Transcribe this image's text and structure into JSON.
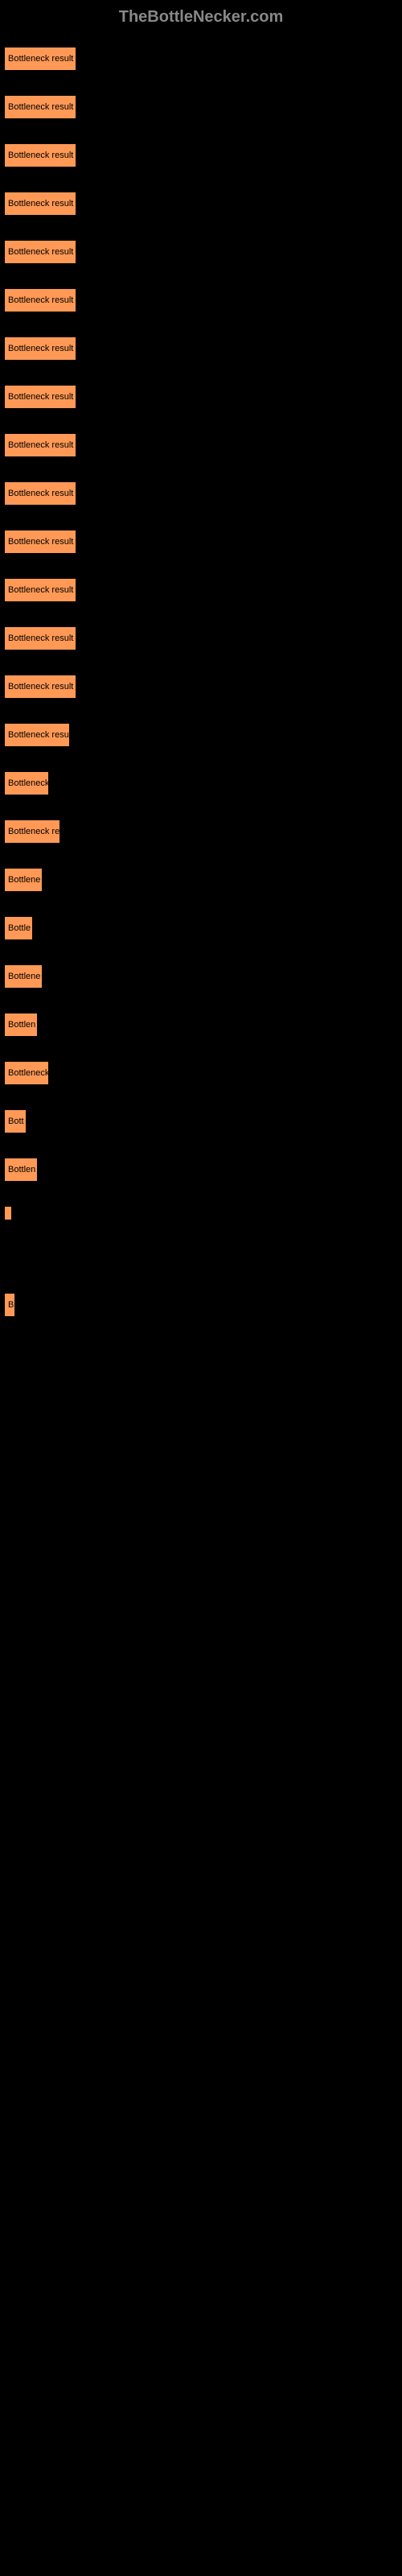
{
  "header": "TheBottleNecker.com",
  "bars": [
    {
      "label": "Bottleneck result",
      "width": 90
    },
    {
      "label": "Bottleneck result",
      "width": 90
    },
    {
      "label": "Bottleneck result",
      "width": 90
    },
    {
      "label": "Bottleneck result",
      "width": 90
    },
    {
      "label": "Bottleneck result",
      "width": 90
    },
    {
      "label": "Bottleneck result",
      "width": 90
    },
    {
      "label": "Bottleneck result",
      "width": 90
    },
    {
      "label": "Bottleneck result",
      "width": 90
    },
    {
      "label": "Bottleneck result",
      "width": 90
    },
    {
      "label": "Bottleneck result",
      "width": 90
    },
    {
      "label": "Bottleneck result",
      "width": 90
    },
    {
      "label": "Bottleneck result",
      "width": 90
    },
    {
      "label": "Bottleneck result",
      "width": 90
    },
    {
      "label": "Bottleneck result",
      "width": 90
    },
    {
      "label": "Bottleneck resu",
      "width": 82
    },
    {
      "label": "Bottleneck",
      "width": 56
    },
    {
      "label": "Bottleneck re",
      "width": 70
    },
    {
      "label": "Bottlene",
      "width": 48
    },
    {
      "label": "Bottle",
      "width": 36
    },
    {
      "label": "Bottlene",
      "width": 48
    },
    {
      "label": "Bottlen",
      "width": 42
    },
    {
      "label": "Bottleneck",
      "width": 56
    },
    {
      "label": "Bott",
      "width": 28
    },
    {
      "label": "Bottlen",
      "width": 42
    },
    {
      "label": "",
      "width": 4
    },
    {
      "label": "",
      "width": 0
    },
    {
      "label": "",
      "width": 0
    },
    {
      "label": "B",
      "width": 14
    },
    {
      "label": "",
      "width": 0
    },
    {
      "label": "",
      "width": 0
    },
    {
      "label": "",
      "width": 0
    },
    {
      "label": "",
      "width": 0
    },
    {
      "label": "",
      "width": 0
    }
  ],
  "colors": {
    "bar_fill": "#ff9955",
    "bar_border": "#000000",
    "background": "#000000",
    "header_text": "#888888",
    "bar_text": "#000000"
  }
}
